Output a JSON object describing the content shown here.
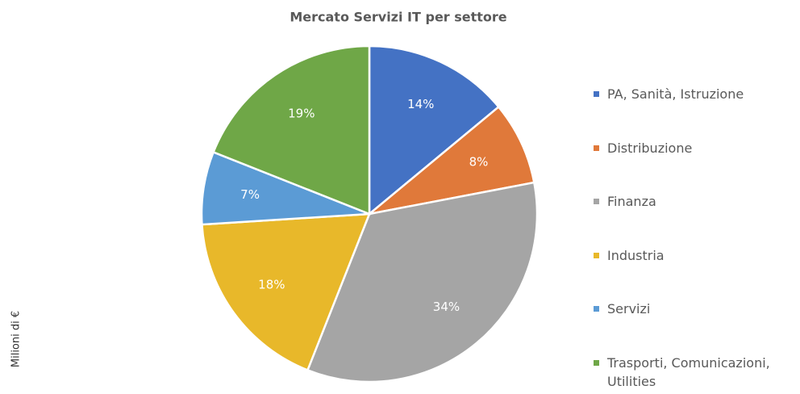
{
  "chart_data": {
    "type": "pie",
    "title": "Mercato Servizi IT per settore",
    "ylabel": "Milioni di €",
    "categories": [
      "PA, Sanità, Istruzione",
      "Distribuzione",
      "Finanza",
      "Industria",
      "Servizi",
      "Trasporti, Comunicazioni, Utilities"
    ],
    "values": [
      14,
      8,
      34,
      18,
      7,
      19
    ],
    "value_labels": [
      "14%",
      "8%",
      "34%",
      "18%",
      "7%",
      "19%"
    ],
    "colors": [
      "#4472c4",
      "#e0793a",
      "#a5a5a5",
      "#e8b82a",
      "#5b9bd5",
      "#6fa747"
    ],
    "legend": "right"
  }
}
